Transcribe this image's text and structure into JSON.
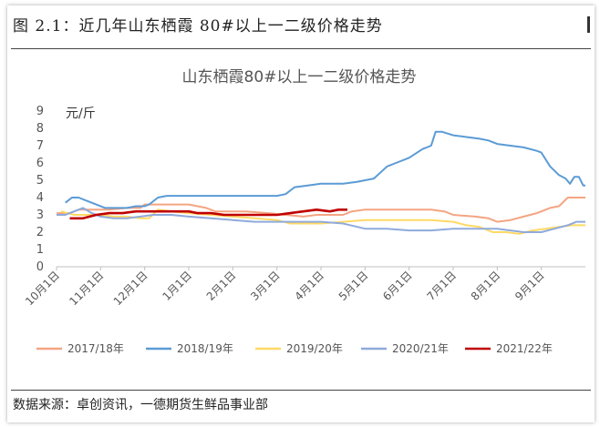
{
  "figure": {
    "caption": "图 2.1：近几年山东栖霞 80#以上一二级价格走势",
    "source": "数据来源：卓创资讯，一德期货生鲜品事业部"
  },
  "chart_data": {
    "type": "line",
    "title": "山东栖霞80#以上一二级价格走势",
    "unit_label": "元/斤",
    "ylim": [
      0,
      9
    ],
    "yticks": [
      0,
      1,
      2,
      3,
      4,
      5,
      6,
      7,
      8,
      9
    ],
    "x_tick_labels": [
      "10月1日",
      "11月1日",
      "12月1日",
      "1月1日",
      "2月1日",
      "3月1日",
      "4月1日",
      "5月1日",
      "6月1日",
      "7月1日",
      "8月1日",
      "9月1日"
    ],
    "x_domain_months": [
      0,
      12
    ],
    "grid": false,
    "legend_position": "bottom",
    "series": [
      {
        "name": "2017/18年",
        "color": "#F4A582",
        "points": [
          [
            0,
            3.1
          ],
          [
            0.3,
            3.1
          ],
          [
            0.5,
            3.3
          ],
          [
            0.8,
            3.3
          ],
          [
            1.2,
            3.3
          ],
          [
            1.6,
            3.4
          ],
          [
            1.9,
            3.4
          ],
          [
            2.0,
            3.6
          ],
          [
            2.6,
            3.6
          ],
          [
            3.0,
            3.6
          ],
          [
            3.2,
            3.5
          ],
          [
            3.4,
            3.4
          ],
          [
            3.6,
            3.2
          ],
          [
            3.9,
            3.2
          ],
          [
            4.3,
            3.2
          ],
          [
            4.8,
            3.1
          ],
          [
            5.2,
            3.0
          ],
          [
            5.6,
            2.9
          ],
          [
            5.9,
            3.0
          ],
          [
            6.2,
            3.0
          ],
          [
            6.5,
            3.0
          ],
          [
            6.7,
            3.2
          ],
          [
            7.0,
            3.3
          ],
          [
            7.5,
            3.3
          ],
          [
            8.0,
            3.3
          ],
          [
            8.5,
            3.3
          ],
          [
            8.8,
            3.2
          ],
          [
            9.0,
            3.0
          ],
          [
            9.5,
            2.9
          ],
          [
            9.8,
            2.8
          ],
          [
            10.0,
            2.6
          ],
          [
            10.3,
            2.7
          ],
          [
            10.6,
            2.9
          ],
          [
            10.9,
            3.1
          ],
          [
            11.2,
            3.4
          ],
          [
            11.4,
            3.5
          ],
          [
            11.6,
            4.0
          ],
          [
            12.0,
            4.0
          ]
        ]
      },
      {
        "name": "2018/19年",
        "color": "#5B9BD5",
        "points": [
          [
            0.2,
            3.7
          ],
          [
            0.35,
            4.0
          ],
          [
            0.5,
            4.0
          ],
          [
            0.7,
            3.8
          ],
          [
            0.9,
            3.6
          ],
          [
            1.1,
            3.4
          ],
          [
            1.4,
            3.4
          ],
          [
            1.6,
            3.4
          ],
          [
            1.8,
            3.5
          ],
          [
            2.0,
            3.5
          ],
          [
            2.1,
            3.6
          ],
          [
            2.3,
            4.0
          ],
          [
            2.5,
            4.1
          ],
          [
            3.0,
            4.1
          ],
          [
            3.5,
            4.1
          ],
          [
            4.0,
            4.1
          ],
          [
            4.5,
            4.1
          ],
          [
            5.0,
            4.1
          ],
          [
            5.2,
            4.2
          ],
          [
            5.4,
            4.6
          ],
          [
            5.7,
            4.7
          ],
          [
            6.0,
            4.8
          ],
          [
            6.5,
            4.8
          ],
          [
            6.8,
            4.9
          ],
          [
            7.0,
            5.0
          ],
          [
            7.2,
            5.1
          ],
          [
            7.5,
            5.8
          ],
          [
            7.7,
            6.0
          ],
          [
            8.0,
            6.3
          ],
          [
            8.3,
            6.8
          ],
          [
            8.5,
            7.0
          ],
          [
            8.6,
            7.8
          ],
          [
            8.75,
            7.8
          ],
          [
            9.0,
            7.6
          ],
          [
            9.3,
            7.5
          ],
          [
            9.6,
            7.4
          ],
          [
            9.8,
            7.3
          ],
          [
            10.0,
            7.1
          ],
          [
            10.3,
            7.0
          ],
          [
            10.6,
            6.9
          ],
          [
            10.9,
            6.7
          ],
          [
            11.0,
            6.6
          ],
          [
            11.2,
            5.8
          ],
          [
            11.4,
            5.3
          ],
          [
            11.55,
            5.1
          ],
          [
            11.65,
            4.8
          ],
          [
            11.75,
            5.2
          ],
          [
            11.85,
            5.2
          ],
          [
            11.95,
            4.7
          ],
          [
            12.0,
            4.7
          ]
        ]
      },
      {
        "name": "2019/20年",
        "color": "#FFD966",
        "points": [
          [
            0.1,
            3.2
          ],
          [
            0.4,
            3.0
          ],
          [
            0.7,
            3.0
          ],
          [
            1.0,
            3.0
          ],
          [
            1.3,
            2.9
          ],
          [
            1.6,
            2.9
          ],
          [
            1.9,
            2.8
          ],
          [
            2.1,
            2.8
          ],
          [
            2.3,
            3.3
          ],
          [
            2.6,
            3.2
          ],
          [
            3.0,
            3.1
          ],
          [
            3.5,
            3.0
          ],
          [
            4.0,
            2.9
          ],
          [
            4.5,
            2.8
          ],
          [
            5.0,
            2.7
          ],
          [
            5.3,
            2.5
          ],
          [
            5.6,
            2.5
          ],
          [
            6.0,
            2.5
          ],
          [
            6.5,
            2.6
          ],
          [
            7.0,
            2.7
          ],
          [
            7.5,
            2.7
          ],
          [
            8.0,
            2.7
          ],
          [
            8.5,
            2.7
          ],
          [
            9.0,
            2.6
          ],
          [
            9.3,
            2.4
          ],
          [
            9.6,
            2.3
          ],
          [
            9.9,
            2.0
          ],
          [
            10.2,
            2.0
          ],
          [
            10.5,
            1.9
          ],
          [
            10.8,
            2.1
          ],
          [
            11.1,
            2.2
          ],
          [
            11.4,
            2.3
          ],
          [
            11.7,
            2.4
          ],
          [
            12.0,
            2.4
          ]
        ]
      },
      {
        "name": "2020/21年",
        "color": "#8FAADC",
        "points": [
          [
            0,
            3.0
          ],
          [
            0.2,
            3.0
          ],
          [
            0.4,
            3.2
          ],
          [
            0.6,
            3.4
          ],
          [
            0.8,
            3.1
          ],
          [
            1.0,
            2.9
          ],
          [
            1.3,
            2.8
          ],
          [
            1.6,
            2.8
          ],
          [
            1.9,
            2.9
          ],
          [
            2.2,
            3.0
          ],
          [
            2.6,
            3.0
          ],
          [
            3.0,
            2.9
          ],
          [
            3.5,
            2.8
          ],
          [
            4.0,
            2.7
          ],
          [
            4.5,
            2.6
          ],
          [
            5.0,
            2.6
          ],
          [
            5.5,
            2.6
          ],
          [
            6.0,
            2.6
          ],
          [
            6.5,
            2.5
          ],
          [
            7.0,
            2.2
          ],
          [
            7.5,
            2.2
          ],
          [
            8.0,
            2.1
          ],
          [
            8.5,
            2.1
          ],
          [
            9.0,
            2.2
          ],
          [
            9.5,
            2.2
          ],
          [
            10.0,
            2.2
          ],
          [
            10.3,
            2.1
          ],
          [
            10.6,
            2.0
          ],
          [
            11.0,
            2.0
          ],
          [
            11.3,
            2.2
          ],
          [
            11.6,
            2.4
          ],
          [
            11.8,
            2.6
          ],
          [
            12.0,
            2.6
          ]
        ]
      },
      {
        "name": "2021/22年",
        "color": "#C00000",
        "points": [
          [
            0.3,
            2.8
          ],
          [
            0.6,
            2.8
          ],
          [
            0.9,
            3.0
          ],
          [
            1.2,
            3.1
          ],
          [
            1.5,
            3.1
          ],
          [
            1.8,
            3.2
          ],
          [
            2.1,
            3.2
          ],
          [
            2.4,
            3.2
          ],
          [
            2.7,
            3.2
          ],
          [
            3.0,
            3.2
          ],
          [
            3.2,
            3.1
          ],
          [
            3.5,
            3.1
          ],
          [
            3.8,
            3.0
          ],
          [
            4.1,
            3.0
          ],
          [
            4.4,
            3.0
          ],
          [
            4.7,
            3.0
          ],
          [
            5.0,
            3.0
          ],
          [
            5.3,
            3.1
          ],
          [
            5.6,
            3.2
          ],
          [
            5.9,
            3.3
          ],
          [
            6.2,
            3.2
          ],
          [
            6.4,
            3.3
          ],
          [
            6.6,
            3.3
          ]
        ]
      }
    ]
  }
}
